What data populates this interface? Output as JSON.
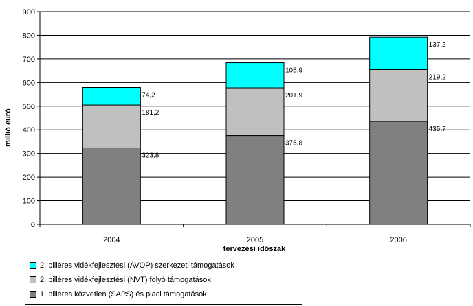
{
  "chart_data": {
    "type": "bar",
    "stacked": true,
    "categories": [
      "2004",
      "2005",
      "2006"
    ],
    "series": [
      {
        "name": "1. pilléres közvetlen (SAPS) és piaci támogatások",
        "values": [
          323.8,
          375.8,
          435.7
        ],
        "labels": [
          "323,8",
          "375,8",
          "435,7"
        ],
        "color": "#808080"
      },
      {
        "name": "2. pilléres vidékfejlesztési (NVT) folyó támogatások",
        "values": [
          181.2,
          201.9,
          219.2
        ],
        "labels": [
          "181,2",
          "201,9",
          "219,2"
        ],
        "color": "#c0c0c0"
      },
      {
        "name": "2. pilléres vidékfejlesztési (AVOP) szerkezeti támogatások",
        "values": [
          74.2,
          105.9,
          137.2
        ],
        "labels": [
          "74,2",
          "105,9",
          "137,2"
        ],
        "color": "#00ffff"
      }
    ],
    "xlabel": "tervezési időszak",
    "ylabel": "millió euró",
    "ylim": [
      0,
      900
    ],
    "yticks": [
      "0",
      "100",
      "200",
      "300",
      "400",
      "500",
      "600",
      "700",
      "800",
      "900"
    ],
    "grid": true,
    "legend": "bottom-left"
  }
}
